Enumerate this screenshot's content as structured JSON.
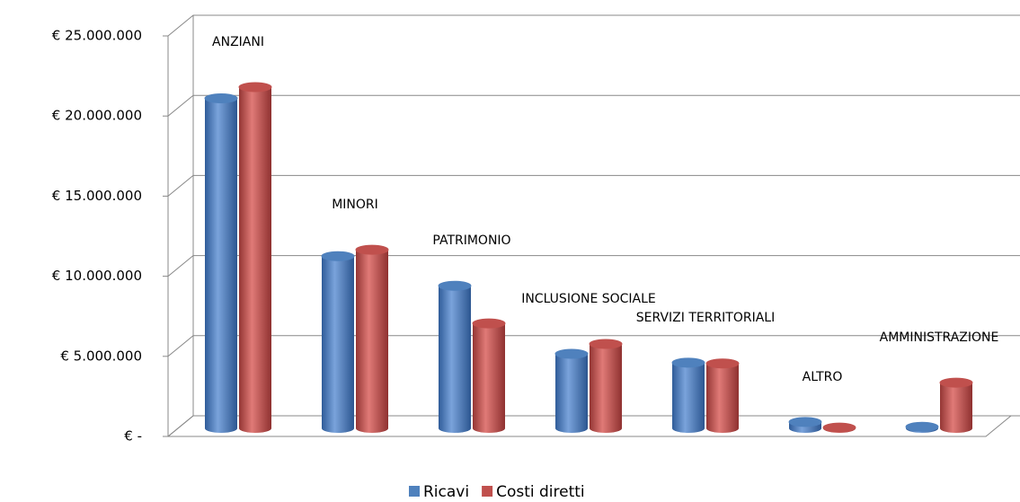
{
  "chart_data": {
    "type": "bar3d",
    "categories": [
      "ANZIANI",
      "MINORI",
      "PATRIMONIO",
      "INCLUSIONE SOCIALE",
      "SERVIZI TERRITORIALI",
      "ALTRO",
      "AMMINISTRAZIONE"
    ],
    "series": [
      {
        "name": "Ricavi",
        "color": "#4f81bd",
        "values": [
          20600000,
          10750000,
          8900000,
          4650000,
          4100000,
          400000,
          100000
        ]
      },
      {
        "name": "Costi diretti",
        "color": "#c0504d",
        "values": [
          21300000,
          11150000,
          6550000,
          5270000,
          4050000,
          50000,
          2850000
        ]
      }
    ],
    "ylim": [
      0,
      25000000
    ],
    "yticks": [
      {
        "value": 0,
        "label": "€ -"
      },
      {
        "value": 5000000,
        "label": "€ 5.000.000"
      },
      {
        "value": 10000000,
        "label": "€ 10.000.000"
      },
      {
        "value": 15000000,
        "label": "€ 15.000.000"
      },
      {
        "value": 20000000,
        "label": "€ 20.000.000"
      },
      {
        "value": 25000000,
        "label": "€ 25.000.000"
      }
    ],
    "grid": true,
    "legend": "bottom"
  }
}
